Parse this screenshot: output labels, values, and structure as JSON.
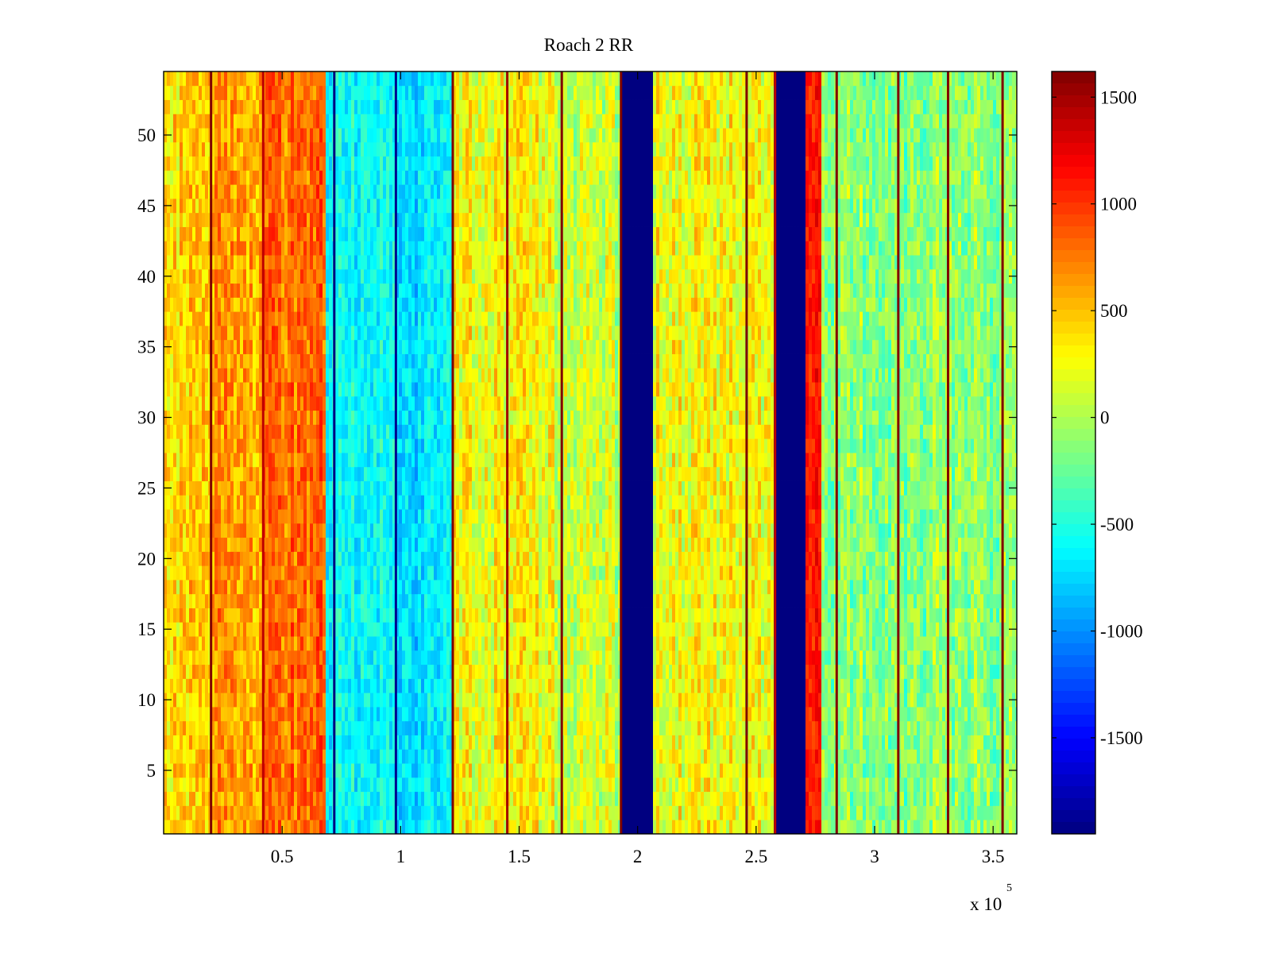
{
  "chart_data": {
    "type": "heatmap",
    "title": "Roach 2 RR",
    "xlabel": "",
    "ylabel": "",
    "x_exponent_label": "x 10",
    "x_exponent": "5",
    "xlim": [
      0,
      360000
    ],
    "ylim": [
      0.5,
      54.5
    ],
    "x_ticks": [
      50000,
      100000,
      150000,
      200000,
      250000,
      300000,
      350000
    ],
    "x_tick_labels": [
      "0.5",
      "1",
      "1.5",
      "2",
      "2.5",
      "3",
      "3.5"
    ],
    "y_ticks": [
      5,
      10,
      15,
      20,
      25,
      30,
      35,
      40,
      45,
      50
    ],
    "y_tick_labels": [
      "5",
      "10",
      "15",
      "20",
      "25",
      "30",
      "35",
      "40",
      "45",
      "50"
    ],
    "colormap": "jet",
    "clim": [
      -1950,
      1620
    ],
    "colorbar": {
      "ticks": [
        1500,
        1000,
        500,
        0,
        -500,
        -1000,
        -1500
      ],
      "tick_labels": [
        "1500",
        "1000",
        "500",
        "0",
        "-500",
        "-1000",
        "-1500"
      ]
    },
    "rows": 54,
    "column_bands": [
      {
        "x_start": 0,
        "x_end": 20000,
        "mean": 400,
        "noise": 380
      },
      {
        "x_start": 20000,
        "x_end": 42000,
        "mean": 600,
        "noise": 380
      },
      {
        "x_start": 42000,
        "x_end": 68000,
        "mean": 800,
        "noise": 330
      },
      {
        "x_start": 68000,
        "x_end": 98000,
        "mean": -580,
        "noise": 300
      },
      {
        "x_start": 98000,
        "x_end": 122000,
        "mean": -700,
        "noise": 300
      },
      {
        "x_start": 122000,
        "x_end": 165000,
        "mean": 260,
        "noise": 380
      },
      {
        "x_start": 165000,
        "x_end": 193000,
        "mean": 90,
        "noise": 380
      },
      {
        "x_start": 193000,
        "x_end": 206000,
        "mean": -1950,
        "noise": 0
      },
      {
        "x_start": 206000,
        "x_end": 258000,
        "mean": 260,
        "noise": 380
      },
      {
        "x_start": 258000,
        "x_end": 271000,
        "mean": -1950,
        "noise": 0
      },
      {
        "x_start": 271000,
        "x_end": 278000,
        "mean": 1150,
        "noise": 250
      },
      {
        "x_start": 278000,
        "x_end": 360000,
        "mean": -120,
        "noise": 380
      }
    ],
    "vertical_lines": [
      {
        "x": 20000,
        "value": 1620
      },
      {
        "x": 42000,
        "value": 1400
      },
      {
        "x": 72000,
        "value": -1950
      },
      {
        "x": 98000,
        "value": -1900
      },
      {
        "x": 122000,
        "value": 1620
      },
      {
        "x": 145000,
        "value": 1500
      },
      {
        "x": 168000,
        "value": 1620
      },
      {
        "x": 193000,
        "value": 1620
      },
      {
        "x": 246000,
        "value": 1620
      },
      {
        "x": 258000,
        "value": 1400
      },
      {
        "x": 284000,
        "value": 1620
      },
      {
        "x": 310000,
        "value": 1620
      },
      {
        "x": 331000,
        "value": 1620
      },
      {
        "x": 354000,
        "value": 1620
      }
    ]
  }
}
